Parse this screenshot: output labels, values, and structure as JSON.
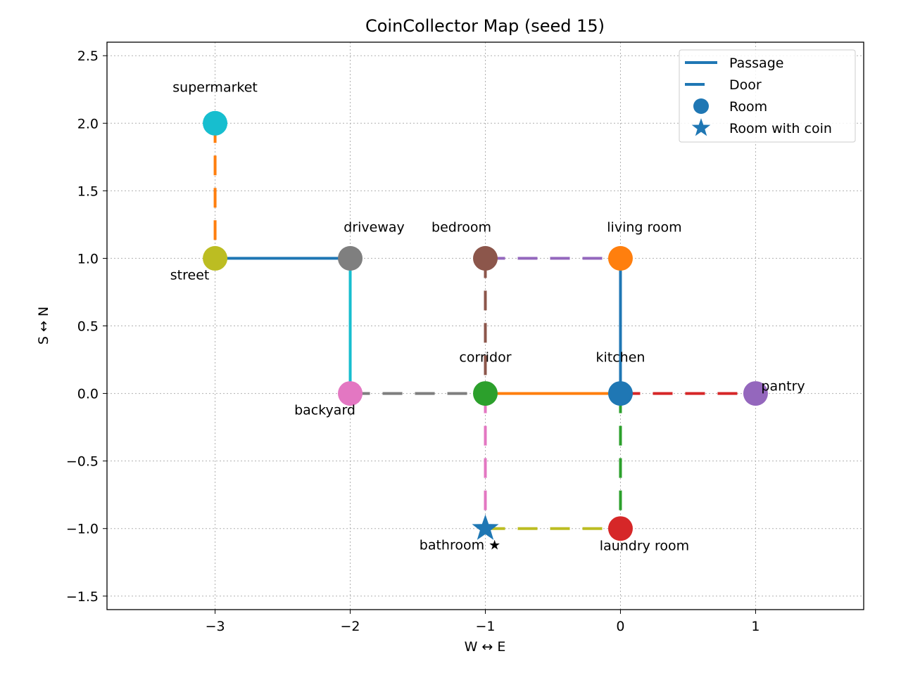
{
  "chart_data": {
    "type": "scatter",
    "title": "CoinCollector Map (seed 15)",
    "xlabel": "W ↔ E",
    "ylabel": "S ↔ N",
    "xlim": [
      -3.8,
      1.8
    ],
    "ylim": [
      -1.6,
      2.6
    ],
    "xticks": [
      -3,
      -2,
      -1,
      0,
      1
    ],
    "xtick_labels": [
      "−3",
      "−2",
      "−1",
      "0",
      "1"
    ],
    "yticks": [
      -1.5,
      -1.0,
      -0.5,
      0.0,
      0.5,
      1.0,
      1.5,
      2.0,
      2.5
    ],
    "ytick_labels": [
      "−1.5",
      "−1.0",
      "−0.5",
      "0.0",
      "0.5",
      "1.0",
      "1.5",
      "2.0",
      "2.5"
    ],
    "grid": true,
    "legend_position": "top-right",
    "legend": [
      {
        "label": "Passage",
        "kind": "passage"
      },
      {
        "label": "Door",
        "kind": "door"
      },
      {
        "label": "Room",
        "kind": "room"
      },
      {
        "label": "Room with coin",
        "kind": "coin"
      }
    ],
    "rooms": [
      {
        "label": "supermarket",
        "x": -3,
        "y": 2,
        "color": "#17becf",
        "coin": false,
        "label_pos": "above"
      },
      {
        "label": "street",
        "x": -3,
        "y": 1,
        "color": "#bcbd22",
        "coin": false,
        "label_pos": "below-left"
      },
      {
        "label": "driveway",
        "x": -2,
        "y": 1,
        "color": "#7f7f7f",
        "coin": false,
        "label_pos": "above-right"
      },
      {
        "label": "bedroom",
        "x": -1,
        "y": 1,
        "color": "#8c564b",
        "coin": false,
        "label_pos": "above-left"
      },
      {
        "label": "living room",
        "x": 0,
        "y": 1,
        "color": "#ff7f0e",
        "coin": false,
        "label_pos": "above-right"
      },
      {
        "label": "backyard",
        "x": -2,
        "y": 0,
        "color": "#e377c2",
        "coin": false,
        "label_pos": "below-left"
      },
      {
        "label": "corridor",
        "x": -1,
        "y": 0,
        "color": "#2ca02c",
        "coin": false,
        "label_pos": "above"
      },
      {
        "label": "kitchen",
        "x": 0,
        "y": 0,
        "color": "#1f77b4",
        "coin": false,
        "label_pos": "above"
      },
      {
        "label": "pantry",
        "x": 1,
        "y": 0,
        "color": "#9467bd",
        "coin": false,
        "label_pos": "right"
      },
      {
        "label": "bathroom ★",
        "x": -1,
        "y": -1,
        "color": "#1f77b4",
        "coin": true,
        "label_pos": "below-left"
      },
      {
        "label": "laundry room",
        "x": 0,
        "y": -1,
        "color": "#d62728",
        "coin": false,
        "label_pos": "below-right"
      }
    ],
    "edges": [
      {
        "from": [
          -3,
          2
        ],
        "to": [
          -3,
          1
        ],
        "kind": "door",
        "color": "#ff7f0e"
      },
      {
        "from": [
          -3,
          1
        ],
        "to": [
          -2,
          1
        ],
        "kind": "passage",
        "color": "#1f77b4"
      },
      {
        "from": [
          -2,
          1
        ],
        "to": [
          -2,
          0
        ],
        "kind": "passage",
        "color": "#17becf"
      },
      {
        "from": [
          -2,
          0
        ],
        "to": [
          -1,
          0
        ],
        "kind": "door",
        "color": "#7f7f7f"
      },
      {
        "from": [
          -1,
          1
        ],
        "to": [
          0,
          1
        ],
        "kind": "door",
        "color": "#9467bd"
      },
      {
        "from": [
          -1,
          1
        ],
        "to": [
          -1,
          0
        ],
        "kind": "door",
        "color": "#8c564b"
      },
      {
        "from": [
          0,
          1
        ],
        "to": [
          0,
          0
        ],
        "kind": "passage",
        "color": "#1f77b4"
      },
      {
        "from": [
          -1,
          0
        ],
        "to": [
          0,
          0
        ],
        "kind": "passage",
        "color": "#ff7f0e"
      },
      {
        "from": [
          0,
          0
        ],
        "to": [
          1,
          0
        ],
        "kind": "door",
        "color": "#d62728"
      },
      {
        "from": [
          -1,
          0
        ],
        "to": [
          -1,
          -1
        ],
        "kind": "door",
        "color": "#e377c2"
      },
      {
        "from": [
          0,
          0
        ],
        "to": [
          0,
          -1
        ],
        "kind": "door",
        "color": "#2ca02c"
      },
      {
        "from": [
          -1,
          -1
        ],
        "to": [
          0,
          -1
        ],
        "kind": "door",
        "color": "#bcbd22"
      }
    ],
    "legend_color": "#1f77b4"
  }
}
